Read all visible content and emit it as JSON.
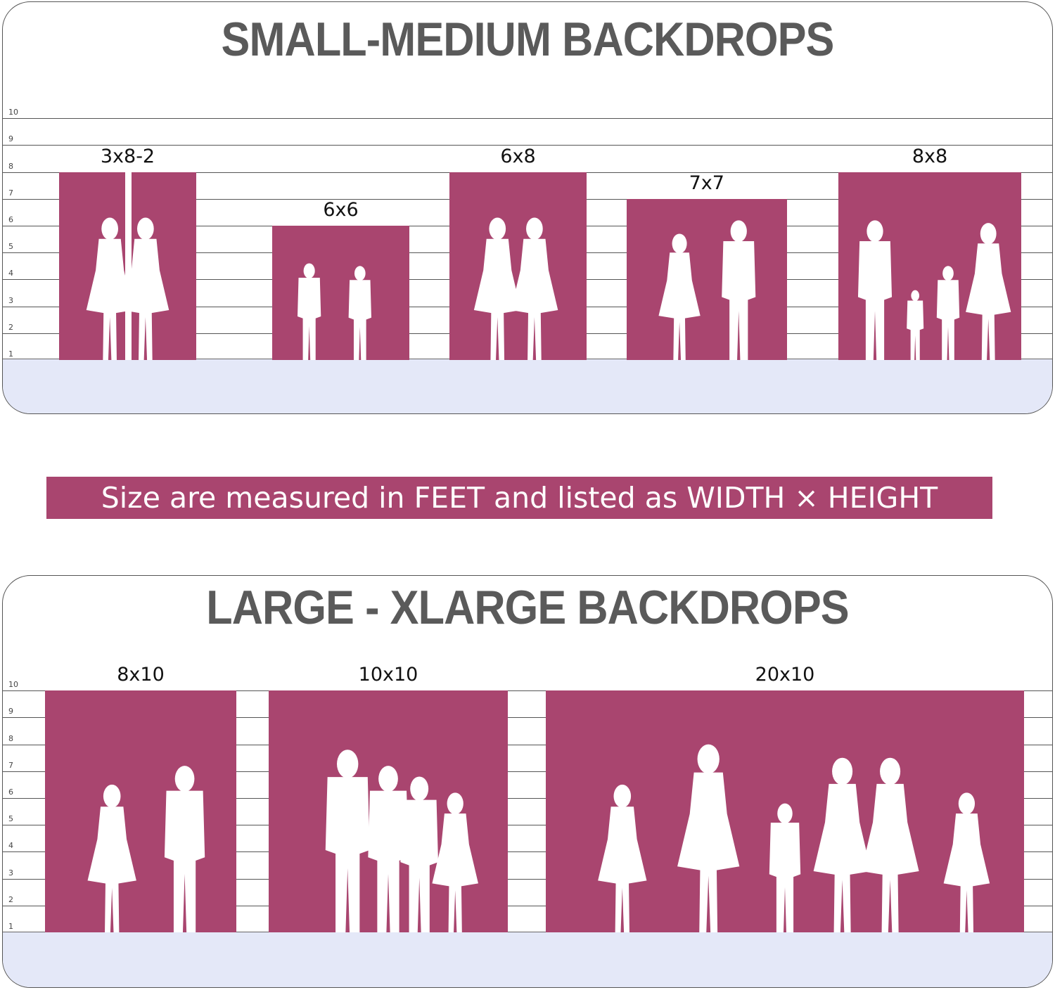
{
  "small_medium": {
    "title": "SMALL-MEDIUM BACKDROPS",
    "axis_ticks": [
      "1",
      "2",
      "3",
      "4",
      "5",
      "6",
      "7",
      "8",
      "9",
      "10"
    ],
    "backdrops": [
      {
        "label": "3x8-2",
        "width_ft": 6,
        "height_ft": 8,
        "split": true
      },
      {
        "label": "6x6",
        "width_ft": 6,
        "height_ft": 6
      },
      {
        "label": "6x8",
        "width_ft": 6,
        "height_ft": 8
      },
      {
        "label": "7x7",
        "width_ft": 7,
        "height_ft": 7
      },
      {
        "label": "8x8",
        "width_ft": 8,
        "height_ft": 8
      }
    ]
  },
  "banner": {
    "text": "Size are measured in FEET and listed as WIDTH × HEIGHT"
  },
  "large_xlarge": {
    "title": "LARGE - XLARGE BACKDROPS",
    "axis_ticks": [
      "1",
      "2",
      "3",
      "4",
      "5",
      "6",
      "7",
      "8",
      "9",
      "10"
    ],
    "backdrops": [
      {
        "label": "8x10",
        "width_ft": 8,
        "height_ft": 10
      },
      {
        "label": "10x10",
        "width_ft": 10,
        "height_ft": 10
      },
      {
        "label": "20x10",
        "width_ft": 20,
        "height_ft": 10
      }
    ]
  },
  "colors": {
    "backdrop": "#a9456f",
    "floor": "#e4e8f8",
    "title": "#5a5a5a"
  }
}
